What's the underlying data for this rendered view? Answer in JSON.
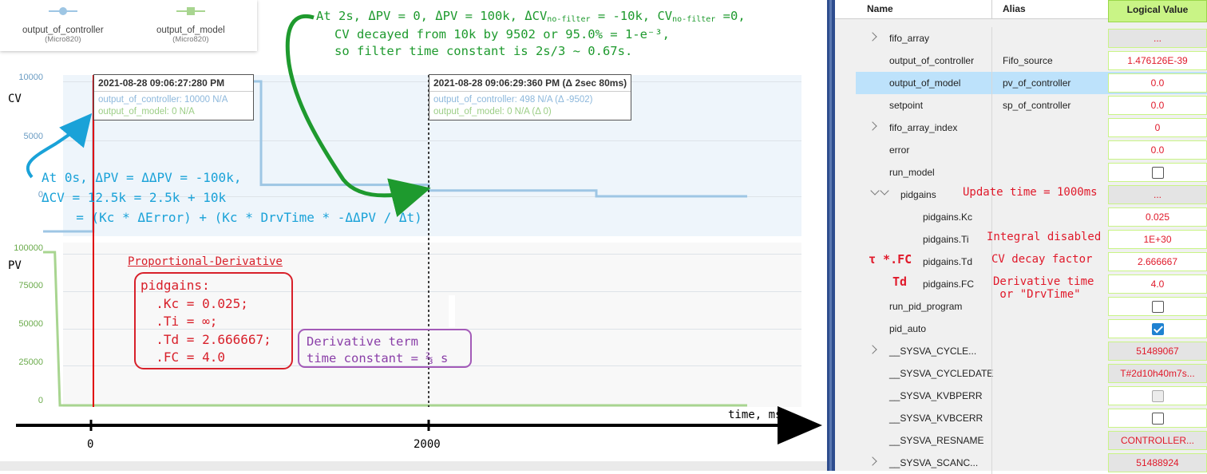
{
  "legend": {
    "items": [
      {
        "label": "output_of_controller",
        "sub": "(Micro820)"
      },
      {
        "label": "output_of_model",
        "sub": "(Micro820)"
      }
    ]
  },
  "chart": {
    "cv_axis_label": "CV",
    "pv_axis_label": "PV",
    "cv_ticks": [
      "10000",
      "5000",
      "0"
    ],
    "pv_ticks": [
      "100000",
      "75000",
      "50000",
      "25000",
      "0"
    ],
    "x_axis_label": "time, ms",
    "x_ticks": [
      "0",
      "2000"
    ]
  },
  "tooltips": [
    {
      "header": "2021-08-28 09:06:27:280 PM",
      "ctrl": "output_of_controller: 10000 N/A",
      "model": "output_of_model: 0 N/A"
    },
    {
      "header": "2021-08-28 09:06:29:360 PM (Δ 2sec 80ms)",
      "ctrl": "output_of_controller: 498 N/A (Δ -9502)",
      "model": "output_of_model: 0 N/A (Δ 0)"
    }
  ],
  "annotations": {
    "green_l1_a": "At 2s, ΔPV = 0, ΔPV = 100k, ΔCV",
    "green_l1_sub1": "no-filter",
    "green_l1_b": " = -10k, CV",
    "green_l1_sub2": "no-filter",
    "green_l1_c": " =0,",
    "green_l2": "CV decayed from 10k by 9502 or 95.0% = 1-e⁻³,",
    "green_l3": "so filter time constant is 2s/3 ~ 0.67s.",
    "blue_l1": "At 0s, ΔPV = ΔΔPV = -100k,",
    "blue_l2": "ΔCV = 12.5k = 2.5k + 10k",
    "blue_l3": "  = (Kc * ΔError) + (Kc * DrvTime * -ΔΔPV / Δt)",
    "pd_title": "Proportional-Derivative",
    "pid_l1": "pidgains:",
    "pid_l2": "  .Kc = 0.025;",
    "pid_l3": "  .Ti = ∞;",
    "pid_l4": "  .Td = 2.666667;",
    "pid_l5": "  .FC = 4.0",
    "deriv_l1": "Derivative term",
    "deriv_l2": "time constant = ⅔ s"
  },
  "chart_data": {
    "type": "line",
    "x_unit": "ms",
    "x_ticks": [
      0,
      2000
    ],
    "series": [
      {
        "name": "output_of_controller",
        "color": "#9ec6e4",
        "x": [
          -300,
          -1,
          0,
          1000,
          1000,
          2000,
          2000,
          3000,
          3000,
          3900
        ],
        "y": [
          -7500,
          -7500,
          10000,
          10000,
          1000,
          1000,
          498,
          498,
          0,
          0
        ],
        "ylim": [
          -8000,
          10000
        ]
      },
      {
        "name": "output_of_model",
        "color": "#a8d590",
        "x": [
          -300,
          -230,
          -200,
          3900
        ],
        "y": [
          100000,
          100000,
          0,
          0
        ],
        "ylim": [
          0,
          100000
        ]
      }
    ]
  },
  "tag_table": {
    "headers": {
      "name": "Name",
      "alias": "Alias",
      "value": "Logical Value"
    },
    "rows": [
      {
        "name": "fifo_array",
        "alias": "",
        "value": "...",
        "expander": "closed",
        "indent": 1,
        "ro": true
      },
      {
        "name": "output_of_controller",
        "alias": "Fifo_source",
        "value": "1.476126E-39",
        "indent": 1
      },
      {
        "name": "output_of_model",
        "alias": "pv_of_controller",
        "value": "0.0",
        "indent": 1,
        "selected": true
      },
      {
        "name": "setpoint",
        "alias": "sp_of_controller",
        "value": "0.0",
        "indent": 1
      },
      {
        "name": "fifo_array_index",
        "alias": "",
        "value": "0",
        "expander": "closed",
        "indent": 1
      },
      {
        "name": "error",
        "alias": "",
        "value": "0.0",
        "indent": 1
      },
      {
        "name": "run_model",
        "alias": "",
        "value": "",
        "checkbox": "unchecked",
        "indent": 1
      },
      {
        "name": "pidgains",
        "alias": "",
        "value": "...",
        "expander": "open",
        "indent": 1,
        "ro": true
      },
      {
        "name": "pidgains.Kc",
        "alias": "",
        "value": "0.025",
        "indent": 2
      },
      {
        "name": "pidgains.Ti",
        "alias": "",
        "value": "1E+30",
        "indent": 2
      },
      {
        "name": "pidgains.Td",
        "alias": "",
        "value": "2.666667",
        "indent": 2
      },
      {
        "name": "pidgains.FC",
        "alias": "",
        "value": "4.0",
        "indent": 2
      },
      {
        "name": "run_pid_program",
        "alias": "",
        "value": "",
        "checkbox": "unchecked",
        "indent": 1
      },
      {
        "name": "pid_auto",
        "alias": "",
        "value": "",
        "checkbox": "checked",
        "indent": 1
      },
      {
        "name": "__SYSVA_CYCLE...",
        "alias": "",
        "value": "51489067",
        "expander": "closed",
        "indent": 1,
        "ro": true
      },
      {
        "name": "__SYSVA_CYCLEDATE",
        "alias": "",
        "value": "T#2d10h40m7s...",
        "indent": 1,
        "ro": true
      },
      {
        "name": "__SYSVA_KVBPERR",
        "alias": "",
        "value": "",
        "checkbox": "disabled",
        "indent": 1
      },
      {
        "name": "__SYSVA_KVBCERR",
        "alias": "",
        "value": "",
        "checkbox": "unchecked",
        "indent": 1
      },
      {
        "name": "__SYSVA_RESNAME",
        "alias": "",
        "value": "CONTROLLER...",
        "indent": 1,
        "ro": true
      },
      {
        "name": "__SYSVA_SCANC...",
        "alias": "",
        "value": "51488924",
        "expander": "closed",
        "indent": 1,
        "ro": true
      }
    ],
    "notes": {
      "update_time": "Update time = 1000ms",
      "integral": "Integral disabled",
      "tau_fc": "τ *.FC",
      "cv_decay": "CV decay factor",
      "td": "Td",
      "deriv_time_l1": "Derivative time",
      "deriv_time_l2": " or \"DrvTime\""
    }
  }
}
